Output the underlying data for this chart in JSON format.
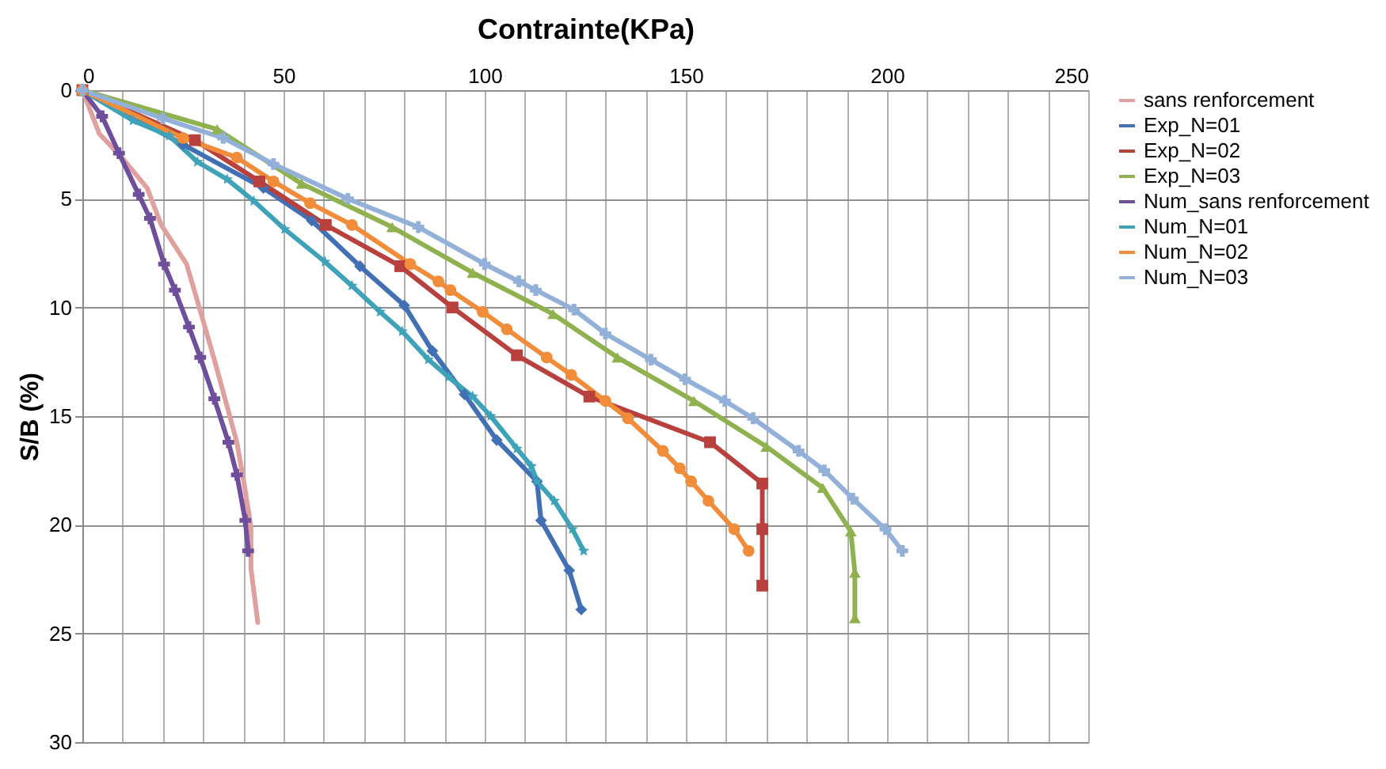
{
  "chart_data": {
    "type": "line",
    "xlabel": "Contrainte(KPa)",
    "ylabel": "S/B (%)",
    "xlim": [
      0,
      250
    ],
    "ylim": [
      30,
      0
    ],
    "xticks": [
      0,
      {
        "value": 10,
        "label": null
      },
      {
        "value": 20,
        "label": null
      },
      {
        "value": 30,
        "label": null
      },
      {
        "value": 40,
        "label": null
      },
      50,
      {
        "value": 60,
        "label": null
      },
      {
        "value": 70,
        "label": null
      },
      {
        "value": 80,
        "label": null
      },
      {
        "value": 90,
        "label": null
      },
      100,
      {
        "value": 110,
        "label": null
      },
      {
        "value": 120,
        "label": null
      },
      {
        "value": 130,
        "label": null
      },
      {
        "value": 140,
        "label": null
      },
      150,
      {
        "value": 160,
        "label": null
      },
      {
        "value": 170,
        "label": null
      },
      {
        "value": 180,
        "label": null
      },
      {
        "value": 190,
        "label": null
      },
      200,
      {
        "value": 210,
        "label": null
      },
      {
        "value": 220,
        "label": null
      },
      {
        "value": 230,
        "label": null
      },
      {
        "value": 240,
        "label": null
      },
      250
    ],
    "yticks": [
      0,
      5,
      10,
      15,
      20,
      25,
      30
    ],
    "grid": true,
    "legend": "right",
    "series": [
      {
        "name": "sans renforcement",
        "color": "#e0a09e",
        "marker": "none",
        "x": [
          0,
          4.2,
          9.8,
          16.1,
          19.6,
          25.9,
          30,
          32.8,
          35.6,
          38.4,
          40.2,
          41.9,
          41.9,
          43.6
        ],
        "values": [
          0,
          2,
          3.1,
          4.5,
          6.2,
          8,
          10.6,
          12.4,
          14.3,
          16.2,
          18.1,
          20.1,
          22,
          24.5
        ]
      },
      {
        "name": "Exp_N=01",
        "color": "#4170b5",
        "marker": "diamond",
        "x": [
          0,
          25,
          45,
          57,
          69,
          80,
          87,
          95,
          103,
          113,
          114,
          121,
          124
        ],
        "values": [
          0,
          2.5,
          4.5,
          6,
          8.1,
          9.9,
          12,
          14,
          16.1,
          18,
          19.8,
          22.1,
          23.9
        ]
      },
      {
        "name": "Exp_N=02",
        "color": "#b8413e",
        "marker": "square",
        "x": [
          0,
          28,
          44,
          60.5,
          79,
          92,
          108,
          126,
          156,
          169,
          169,
          169
        ],
        "values": [
          0,
          2.3,
          4.2,
          6.2,
          8.1,
          10,
          12.2,
          14.1,
          16.2,
          18.1,
          20.2,
          22.8
        ]
      },
      {
        "name": "Exp_N=03",
        "color": "#8fb24f",
        "marker": "triangle",
        "x": [
          0,
          33.5,
          54.5,
          77,
          97,
          117,
          133,
          152,
          170,
          184,
          191,
          192,
          192
        ],
        "values": [
          0,
          1.8,
          4.3,
          6.3,
          8.4,
          10.3,
          12.3,
          14.3,
          16.4,
          18.3,
          20.3,
          22.2,
          24.3
        ]
      },
      {
        "name": "Num_sans renforcement",
        "color": "#6f4f9b",
        "marker": "cross",
        "x": [
          0,
          4.9,
          9.1,
          14,
          16.8,
          20.3,
          23,
          26.5,
          29.3,
          32.8,
          36.3,
          38.4,
          40.5,
          41.2
        ],
        "values": [
          0,
          1.2,
          2.9,
          4.8,
          5.9,
          8,
          9.2,
          10.9,
          12.3,
          14.2,
          16.2,
          17.7,
          19.8,
          21.2
        ]
      },
      {
        "name": "Num_N=01",
        "color": "#3ea2b8",
        "marker": "star",
        "x": [
          0,
          12.6,
          21.6,
          28.6,
          36,
          42.6,
          50.3,
          60.3,
          67,
          74,
          79.5,
          86,
          91,
          97,
          101.5,
          108,
          111.6,
          113,
          117.3,
          121.8,
          124.6
        ],
        "values": [
          0,
          1.4,
          2.1,
          3.3,
          4.1,
          5.1,
          6.4,
          7.9,
          9,
          10.2,
          11.1,
          12.4,
          13.2,
          14.1,
          15,
          16.5,
          17.3,
          18,
          18.9,
          20.2,
          21.2
        ]
      },
      {
        "name": "Num_N=02",
        "color": "#f08c3a",
        "marker": "circle",
        "x": [
          0,
          25,
          38.4,
          47.5,
          56.6,
          67,
          81.5,
          88.5,
          91.5,
          99.5,
          105.5,
          115.4,
          121.5,
          130,
          135.6,
          144.3,
          148.5,
          151.3,
          155.6,
          162,
          165.6
        ],
        "values": [
          0,
          2.2,
          3.1,
          4.2,
          5.2,
          6.2,
          8,
          8.8,
          9.2,
          10.2,
          11,
          12.3,
          13.1,
          14.3,
          15.1,
          16.6,
          17.4,
          18,
          18.9,
          20.2,
          21.2
        ]
      },
      {
        "name": "Num_N=03",
        "color": "#93b1d8",
        "marker": "cross",
        "x": [
          0,
          20,
          35,
          47.5,
          66,
          83.5,
          100,
          108.5,
          112.7,
          122.2,
          130,
          141.3,
          149.8,
          159.7,
          166.7,
          178,
          184.4,
          191.5,
          199.6,
          203.8
        ],
        "values": [
          0,
          1.3,
          2.2,
          3.4,
          5,
          6.3,
          8,
          8.8,
          9.2,
          10.1,
          11.2,
          12.4,
          13.3,
          14.3,
          15.1,
          16.6,
          17.5,
          18.8,
          20.2,
          21.2
        ]
      }
    ]
  }
}
